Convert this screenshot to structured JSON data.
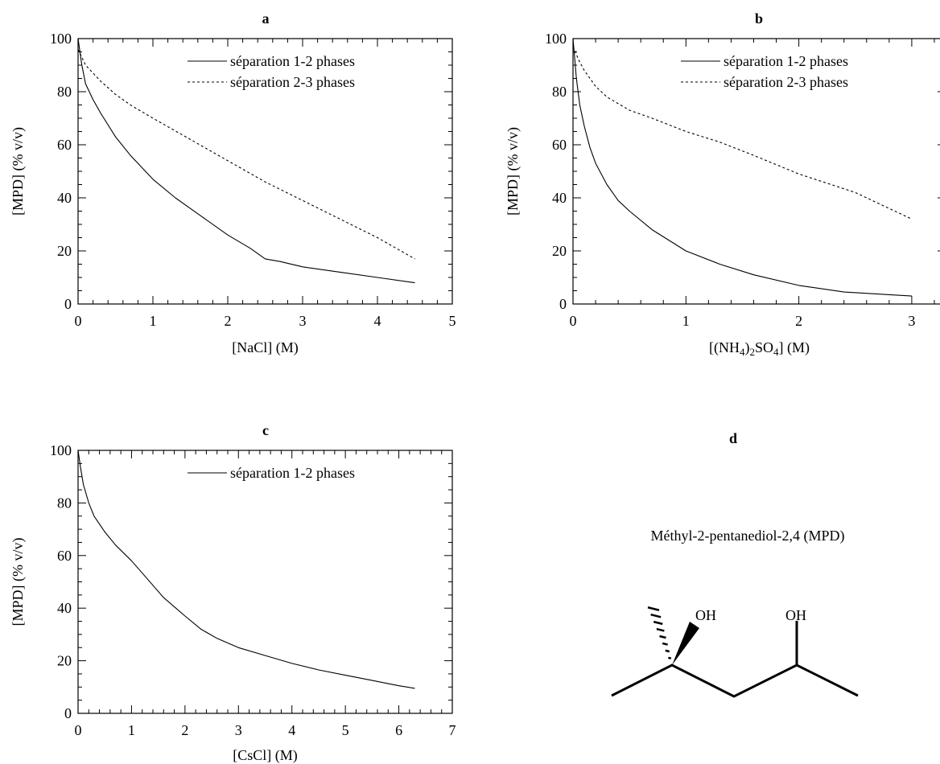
{
  "chart_data": [
    {
      "panel": "a",
      "type": "line",
      "title": "a",
      "xlabel": "[NaCl] (M)",
      "ylabel": "[MPD] (% v/v)",
      "xlim": [
        0,
        5
      ],
      "ylim": [
        0,
        100
      ],
      "x_ticks": [
        "0",
        "1",
        "2",
        "3",
        "4",
        "5"
      ],
      "y_ticks": [
        "0",
        "20",
        "40",
        "60",
        "80",
        "100"
      ],
      "legend_position": "top-right",
      "series": [
        {
          "name": "séparation 1-2 phases",
          "style": "solid",
          "x": [
            0,
            0.05,
            0.1,
            0.2,
            0.3,
            0.5,
            0.7,
            1.0,
            1.3,
            1.6,
            2.0,
            2.3,
            2.5,
            2.7,
            3.0,
            3.5,
            4.0,
            4.5
          ],
          "y": [
            100,
            90,
            83,
            77,
            72,
            63,
            56,
            47,
            40,
            34,
            26,
            21,
            17,
            16,
            14,
            12,
            10,
            8
          ]
        },
        {
          "name": "séparation 2-3 phases",
          "style": "dashed",
          "x": [
            0,
            0.1,
            0.3,
            0.5,
            0.7,
            1.0,
            1.5,
            2.0,
            2.5,
            3.0,
            3.5,
            4.0,
            4.5
          ],
          "y": [
            96,
            90,
            84,
            79,
            75,
            70,
            62,
            54,
            46,
            39,
            32,
            25,
            17
          ]
        }
      ]
    },
    {
      "panel": "b",
      "type": "line",
      "title": "b",
      "xlabel": "[(NH₄)₂SO₄] (M)",
      "xlabel_parts": {
        "p1": "[(NH",
        "s1": "4",
        "p2": ")",
        "s2": "2",
        "p3": "SO",
        "s3": "4",
        "p4": "] (M)"
      },
      "ylabel": "[MPD] (% v/v)",
      "xlim": [
        0,
        3.3
      ],
      "ylim": [
        0,
        100
      ],
      "x_ticks": [
        "0",
        "1",
        "2",
        "3"
      ],
      "y_ticks": [
        "0",
        "20",
        "40",
        "60",
        "80",
        "100"
      ],
      "legend_position": "top-right",
      "series": [
        {
          "name": "séparation 1-2 phases",
          "style": "solid",
          "x": [
            0,
            0.03,
            0.06,
            0.1,
            0.15,
            0.2,
            0.3,
            0.4,
            0.5,
            0.7,
            1.0,
            1.3,
            1.6,
            2.0,
            2.4,
            2.8,
            3.0
          ],
          "y": [
            100,
            85,
            75,
            67,
            59,
            53,
            45,
            39,
            35,
            28,
            20,
            15,
            11,
            7,
            4.5,
            3.5,
            3
          ]
        },
        {
          "name": "séparation 2-3 phases",
          "style": "dashed",
          "x": [
            0,
            0.05,
            0.1,
            0.2,
            0.3,
            0.5,
            0.7,
            1.0,
            1.3,
            1.6,
            2.0,
            2.5,
            3.0
          ],
          "y": [
            97,
            92,
            88,
            82,
            78,
            73,
            70,
            65,
            61,
            56,
            49,
            42,
            32
          ]
        }
      ]
    },
    {
      "panel": "c",
      "type": "line",
      "title": "c",
      "xlabel": "[CsCl] (M)",
      "ylabel": "[MPD] (% v/v)",
      "xlim": [
        0,
        7
      ],
      "ylim": [
        0,
        100
      ],
      "x_ticks": [
        "0",
        "1",
        "2",
        "3",
        "4",
        "5",
        "6",
        "7"
      ],
      "y_ticks": [
        "0",
        "20",
        "40",
        "60",
        "80",
        "100"
      ],
      "legend_position": "top-right",
      "series": [
        {
          "name": "séparation 1-2 phases",
          "style": "solid",
          "x": [
            0,
            0.05,
            0.1,
            0.2,
            0.3,
            0.5,
            0.7,
            1.0,
            1.3,
            1.6,
            2.0,
            2.3,
            2.6,
            3.0,
            3.5,
            4.0,
            4.5,
            5.0,
            5.5,
            6.0,
            6.3
          ],
          "y": [
            100,
            93,
            87,
            80,
            75,
            69,
            64,
            58,
            51,
            44,
            37,
            32,
            28.5,
            25,
            22,
            19,
            16.5,
            14.5,
            12.5,
            10.5,
            9.5
          ]
        }
      ]
    }
  ],
  "structure": {
    "panel_label": "d",
    "compound_name": "Méthyl-2-pentanediol-2,4 (MPD)",
    "oh_left": "OH",
    "oh_right": "OH"
  }
}
